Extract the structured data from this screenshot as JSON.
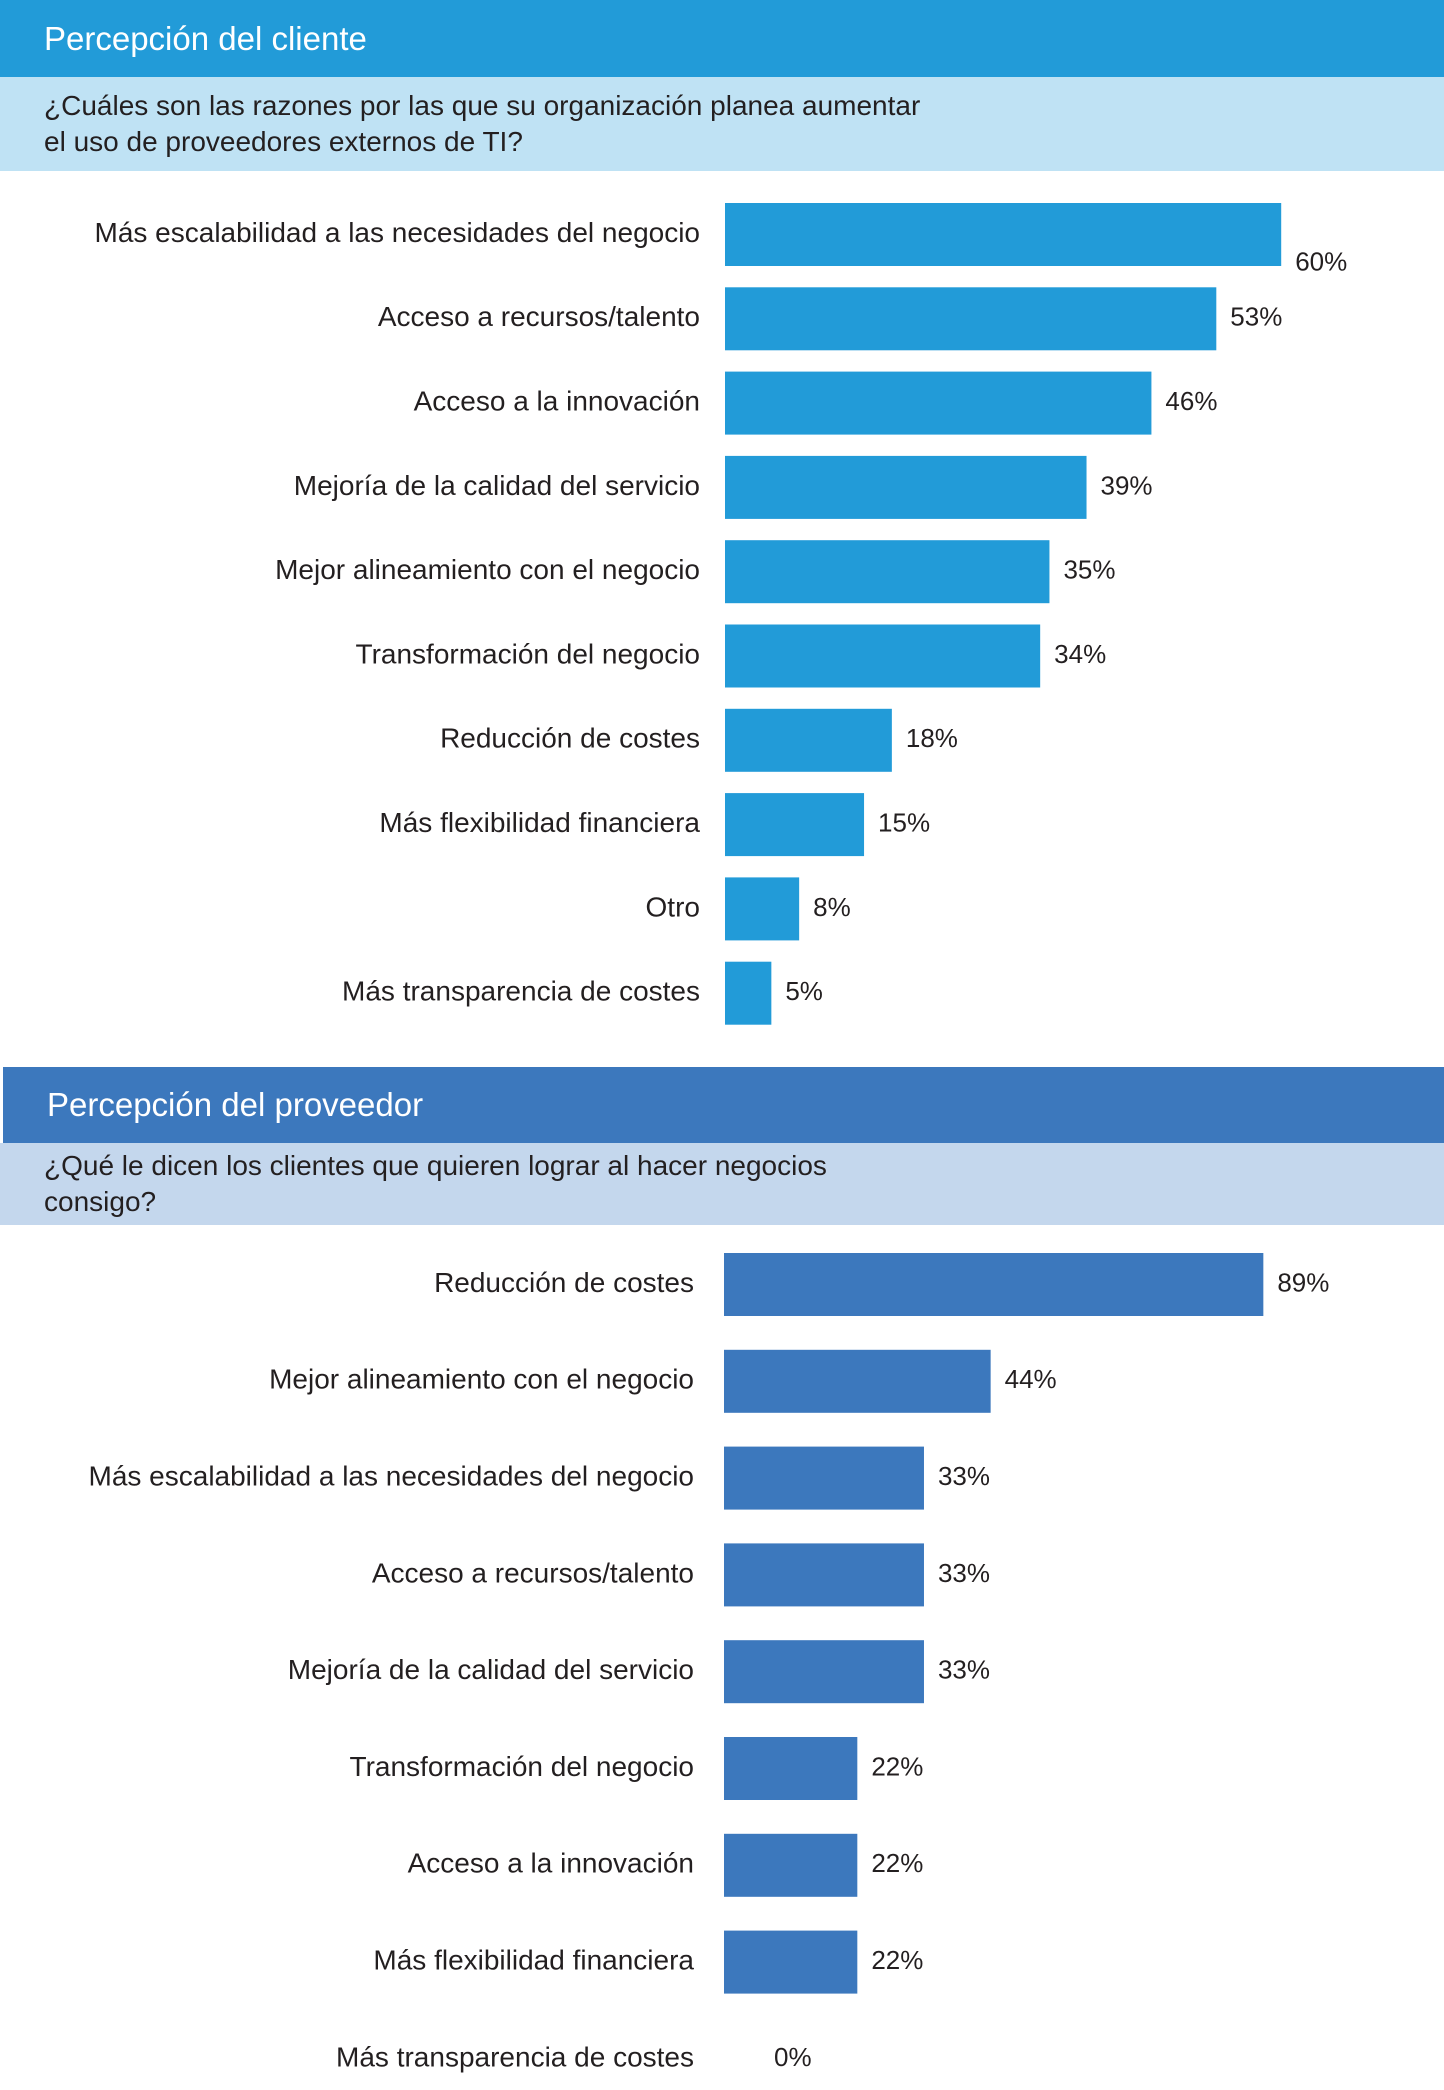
{
  "colors": {
    "client_bar": "#229bd8",
    "provider_bar": "#3c78bd"
  },
  "client": {
    "header": "Percepción del cliente",
    "question": "¿Cuáles son las razones por las que su organización planea aumentar el uso de proveedores externos de TI?"
  },
  "provider": {
    "header": "Percepción del proveedor",
    "question": "¿Qué le dicen los clientes que quieren lograr al hacer negocios consigo?"
  },
  "chart_data": [
    {
      "type": "bar",
      "orientation": "horizontal",
      "categories": [
        "Más escalabilidad a las necesidades del negocio",
        "Acceso a recursos/talento",
        "Acceso a la innovación",
        "Mejoría de la calidad del servicio",
        "Mejor alineamiento con el negocio",
        "Transformación del negocio",
        "Reducción de costes",
        "Más flexibilidad financiera",
        "Otro",
        "Más transparencia de costes"
      ],
      "values": [
        60,
        53,
        46,
        39,
        35,
        34,
        18,
        15,
        8,
        5
      ],
      "value_labels": [
        "60%",
        "53%",
        "46%",
        "39%",
        "35%",
        "34%",
        "18%",
        "15%",
        "8%",
        "5%"
      ],
      "grid": false
    },
    {
      "type": "bar",
      "orientation": "horizontal",
      "categories": [
        "Reducción de costes",
        "Mejor alineamiento con el negocio",
        "Más escalabilidad a las necesidades del negocio",
        "Acceso a recursos/talento",
        "Mejoría de la calidad del servicio",
        "Transformación del negocio",
        "Acceso a la innovación",
        "Más flexibilidad financiera",
        "Más transparencia de costes"
      ],
      "values": [
        89,
        44,
        33,
        33,
        33,
        22,
        22,
        22,
        0
      ],
      "value_labels": [
        "89%",
        "44%",
        "33%",
        "33%",
        "33%",
        "22%",
        "22%",
        "22%",
        "0%"
      ],
      "grid": false
    }
  ]
}
